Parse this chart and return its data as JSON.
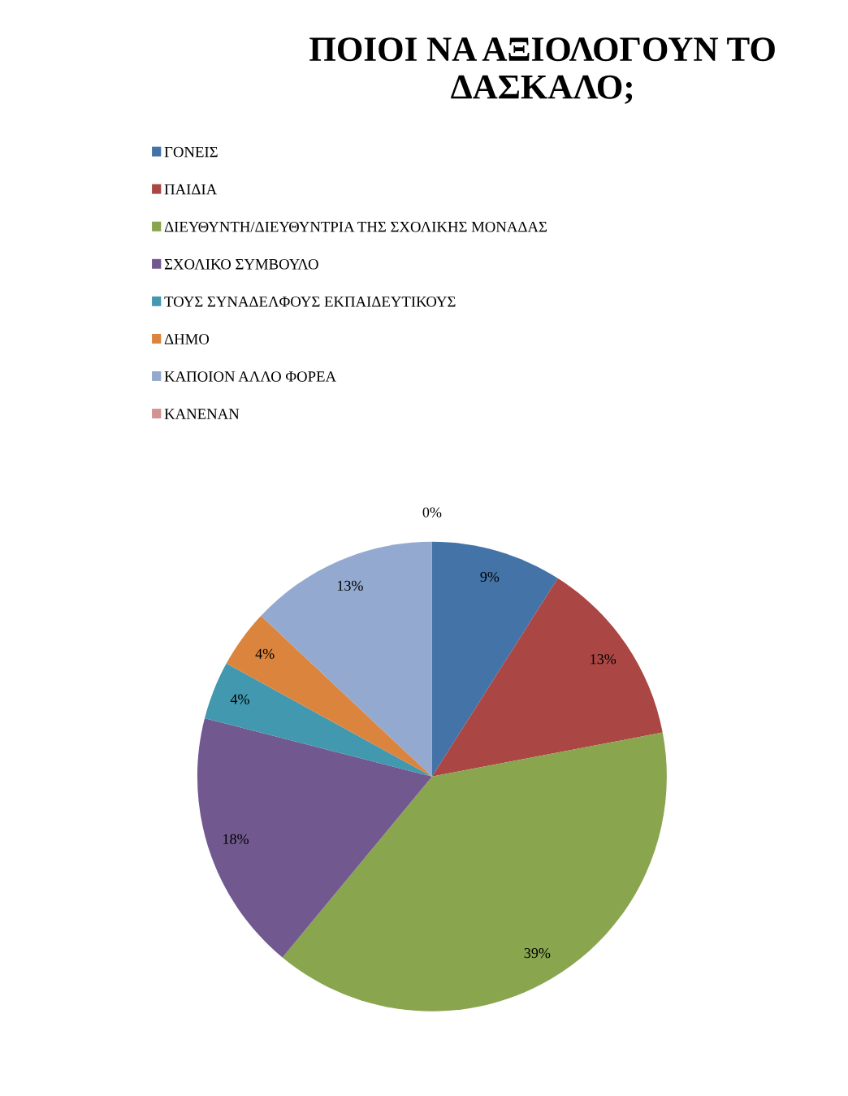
{
  "chart_data": {
    "type": "pie",
    "title": "ΠΟΙΟΙ ΝΑ ΑΞΙΟΛΟΓΟΥΝ ΤΟ ΔΑΣΚΑΛΟ;",
    "categories": [
      "ΓΟΝΕΙΣ",
      "ΠΑΙΔΙΑ",
      "ΔΙΕΥΘΥΝΤΗ/ΔΙΕΥΘΥΝΤΡΙΑ ΤΗΣ ΣΧΟΛΙΚΗΣ ΜΟΝΑΔΑΣ",
      "ΣΧΟΛΙΚΟ ΣΥΜΒΟΥΛΟ",
      "ΤΟΥΣ ΣΥΝΑΔΕΛΦΟΥΣ ΕΚΠΑΙΔΕΥΤΙΚΟΥΣ",
      "ΔΗΜΟ",
      "ΚΑΠΟΙΟΝ ΑΛΛΟ ΦΟΡΕΑ",
      "ΚΑΝΕΝΑΝ"
    ],
    "values": [
      9,
      13,
      39,
      18,
      4,
      4,
      13,
      0
    ],
    "colors": [
      "#4473a8",
      "#aa4643",
      "#89a54e",
      "#71588f",
      "#4198af",
      "#db843d",
      "#93a9cf",
      "#d19392"
    ],
    "value_labels": [
      "9%",
      "13%",
      "39%",
      "18%",
      "4%",
      "4%",
      "13%",
      "0%"
    ],
    "legend": "top left"
  }
}
